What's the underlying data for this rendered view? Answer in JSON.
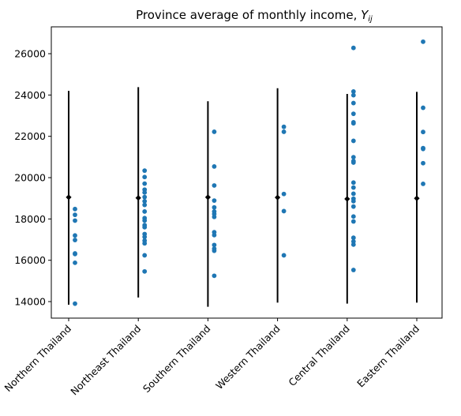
{
  "chart_data": {
    "type": "scatter",
    "title": "Province average of monthly income, ",
    "title_math": "Y",
    "title_math_sub": "ij",
    "xlabel": "",
    "ylabel": "",
    "ylim": [
      13200,
      27300
    ],
    "yticks": [
      14000,
      16000,
      18000,
      20000,
      22000,
      24000,
      26000
    ],
    "ytick_labels": [
      "14000",
      "16000",
      "18000",
      "20000",
      "22000",
      "24000",
      "26000"
    ],
    "grid": false,
    "legend": "none",
    "categories": [
      "Northern Thailand",
      "Northeast Thailand",
      "Southern Thailand",
      "Western Thailand",
      "Central Thailand",
      "Eastern Thailand"
    ],
    "point_color": "#1f77b4",
    "interval_color": "#000000",
    "groups": [
      {
        "category": "Northern Thailand",
        "mean": 19050,
        "interval": [
          13850,
          24200
        ],
        "points": [
          18480,
          18200,
          17920,
          17200,
          16980,
          16330,
          16300,
          15880,
          13900
        ]
      },
      {
        "category": "Northeast Thailand",
        "mean": 19020,
        "interval": [
          14200,
          24380
        ],
        "points": [
          20340,
          20030,
          19710,
          19420,
          19280,
          19060,
          18860,
          18680,
          18360,
          18040,
          17920,
          17700,
          17600,
          17270,
          17130,
          16950,
          16820,
          16240,
          15460
        ]
      },
      {
        "category": "Southern Thailand",
        "mean": 19050,
        "interval": [
          13750,
          23700
        ],
        "points": [
          22220,
          20540,
          19620,
          18890,
          18560,
          18360,
          18240,
          18100,
          17360,
          17220,
          16740,
          16560,
          16460,
          15250
        ]
      },
      {
        "category": "Western Thailand",
        "mean": 19040,
        "interval": [
          13950,
          24330
        ],
        "points": [
          22460,
          22220,
          19210,
          18380,
          16240
        ]
      },
      {
        "category": "Central Thailand",
        "mean": 18970,
        "interval": [
          13900,
          24050
        ],
        "points": [
          26280,
          24170,
          23990,
          23610,
          23090,
          22680,
          22630,
          21780,
          20990,
          20800,
          20730,
          19760,
          19520,
          19220,
          18980,
          18860,
          18600,
          18120,
          17880,
          17090,
          16910,
          16760,
          15530
        ]
      },
      {
        "category": "Eastern Thailand",
        "mean": 19000,
        "interval": [
          13950,
          24150
        ],
        "points": [
          26580,
          23380,
          22210,
          21430,
          21390,
          20700,
          19700
        ]
      }
    ]
  }
}
